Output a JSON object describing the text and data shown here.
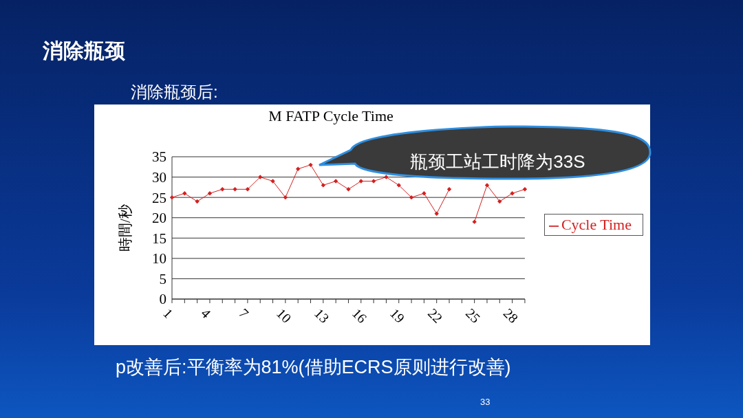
{
  "chart_data": {
    "type": "line",
    "title": "消除瓶颈",
    "subtitle": "消除瓶颈后:",
    "ylabel": "時間/秒",
    "categories": [
      "1",
      null,
      null,
      "4",
      null,
      null,
      "7",
      null,
      null,
      "10",
      null,
      null,
      "13",
      null,
      null,
      "16",
      null,
      null,
      "19",
      null,
      null,
      "22",
      null,
      null,
      "25",
      null,
      null,
      "28",
      null
    ],
    "series": [
      {
        "name": "Cycle Time",
        "color": "#d42020",
        "values": [
          25,
          26,
          24,
          26,
          27,
          27,
          27,
          30,
          29,
          25,
          32,
          33,
          28,
          29,
          27,
          29,
          29,
          30,
          28,
          25,
          26,
          21,
          27,
          null,
          19,
          28,
          24,
          26,
          27
        ]
      }
    ],
    "ylim": [
      0,
      35
    ],
    "yticks": [
      0,
      5,
      10,
      15,
      20,
      25,
      30,
      35
    ],
    "grid": "y",
    "legend": "right",
    "marker": "diamond",
    "line_style": "solid",
    "annotations": [
      "M FATP Cycle Time",
      "瓶颈工站工时降为33S",
      "p改善后:平衡率为81%(借助ECRS原则进行改善)",
      "33"
    ]
  }
}
